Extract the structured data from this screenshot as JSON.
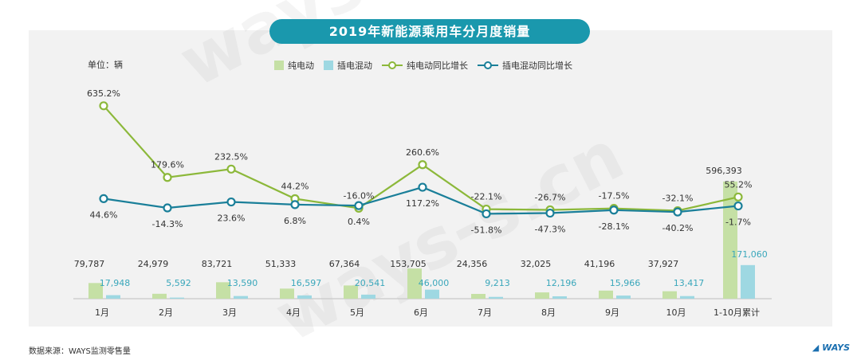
{
  "chart_data": {
    "type": "bar+line",
    "title": "2019年新能源乘用车分月度销量",
    "unit_label": "单位：辆",
    "categories": [
      "1月",
      "2月",
      "3月",
      "4月",
      "5月",
      "6月",
      "7月",
      "8月",
      "9月",
      "10月",
      "1-10月累计"
    ],
    "series": [
      {
        "name": "纯电动",
        "kind": "bar",
        "color": "#c5e0a5",
        "values": [
          79787,
          24979,
          83721,
          51333,
          67364,
          153705,
          24356,
          32025,
          41196,
          37927,
          596393
        ],
        "labels": [
          "79,787",
          "24,979",
          "83,721",
          "51,333",
          "67,364",
          "153,705",
          "24,356",
          "32,025",
          "41,196",
          "37,927",
          "596,393"
        ]
      },
      {
        "name": "插电混动",
        "kind": "bar",
        "color": "#9ed8e2",
        "values": [
          17948,
          5592,
          13590,
          16597,
          20541,
          46000,
          9213,
          12196,
          15966,
          13417,
          171060
        ],
        "labels": [
          "17,948",
          "5,592",
          "13,590",
          "16,597",
          "20,541",
          "46,000",
          "9,213",
          "12,196",
          "15,966",
          "13,417",
          "171,060"
        ]
      },
      {
        "name": "纯电动同比增长",
        "kind": "line",
        "color": "#8cb83a",
        "values": [
          635.2,
          179.6,
          232.5,
          44.2,
          -16.0,
          260.6,
          -22.1,
          -26.7,
          -17.5,
          -32.1,
          55.2
        ],
        "labels": [
          "635.2%",
          "179.6%",
          "232.5%",
          "44.2%",
          "-16.0%",
          "260.6%",
          "-22.1%",
          "-26.7%",
          "-17.5%",
          "-32.1%",
          "55.2%"
        ]
      },
      {
        "name": "插电混动同比增长",
        "kind": "line",
        "color": "#1a7f99",
        "values": [
          44.6,
          -14.3,
          23.6,
          6.8,
          0.4,
          117.2,
          -51.8,
          -47.3,
          -28.1,
          -40.2,
          -1.7
        ],
        "labels": [
          "44.6%",
          "-14.3%",
          "23.6%",
          "6.8%",
          "0.4%",
          "117.2%",
          "-51.8%",
          "-47.3%",
          "-28.1%",
          "-40.2%",
          "-1.7%"
        ]
      }
    ],
    "bar_axis": {
      "min": 0,
      "max": 600000,
      "visible": false
    },
    "line_axis": {
      "min": -80,
      "max": 700,
      "visible": false
    },
    "grid": false,
    "legend_position": "top-center"
  },
  "footer": {
    "source": "数据来源：WAYS监测零售量",
    "brand": "WAYS"
  },
  "watermark": "ways-s.cn",
  "colors": {
    "title_bg": "#1a98ad",
    "bev": "#c5e0a5",
    "phev": "#9ed8e2",
    "bev_line": "#8cb83a",
    "phev_line": "#1a7f99"
  }
}
